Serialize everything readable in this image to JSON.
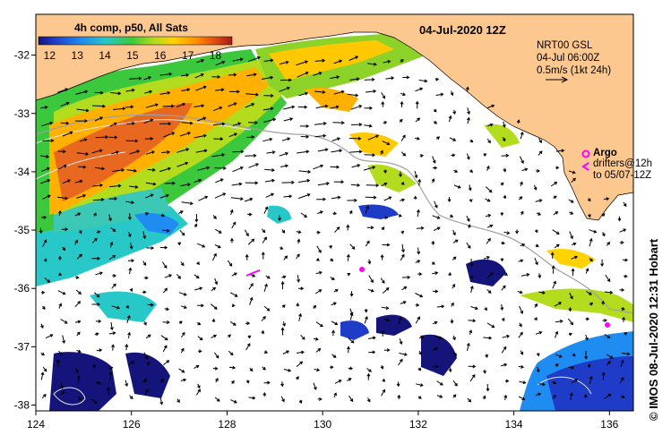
{
  "map": {
    "date_label": "04-Jul-2020 12Z",
    "legend_title": "4h comp, p50, All Sats",
    "colorbar_ticks": [
      "12",
      "13",
      "14",
      "15",
      "16",
      "17",
      "18"
    ],
    "colorbar_range": [
      11.6,
      18.6
    ],
    "colorbar_colors": [
      "#14147a",
      "#1e3cc8",
      "#1e8cf0",
      "#28c8c8",
      "#3cc83c",
      "#b4dc1e",
      "#ffd200",
      "#ff8c00",
      "#dc4614",
      "#a01e1e"
    ],
    "info_lines": [
      "NRT00 GSL",
      "04-Jul 06:00Z",
      "0.5m/s (1kt 24h)"
    ],
    "argo_label": "Argo",
    "drifters_line1": "drifters@12h",
    "drifters_line2": "to 05/07-12Z",
    "credit": "© IMOS 08-Jul-2020 12:31 Hobart",
    "x_ticks": [
      "124",
      "126",
      "128",
      "130",
      "132",
      "134",
      "136"
    ],
    "y_ticks": [
      "-32",
      "-33",
      "-34",
      "-35",
      "-36",
      "-37",
      "-38"
    ],
    "lon_range": [
      124,
      136.5
    ],
    "lat_range": [
      -38.1,
      -31.3
    ],
    "colors": {
      "land": "#fcc890",
      "cloud": "#ffffff",
      "argo": "#ff00ff",
      "bathymetry": "#a0a0a0",
      "contour": "#e8e8e8"
    }
  }
}
